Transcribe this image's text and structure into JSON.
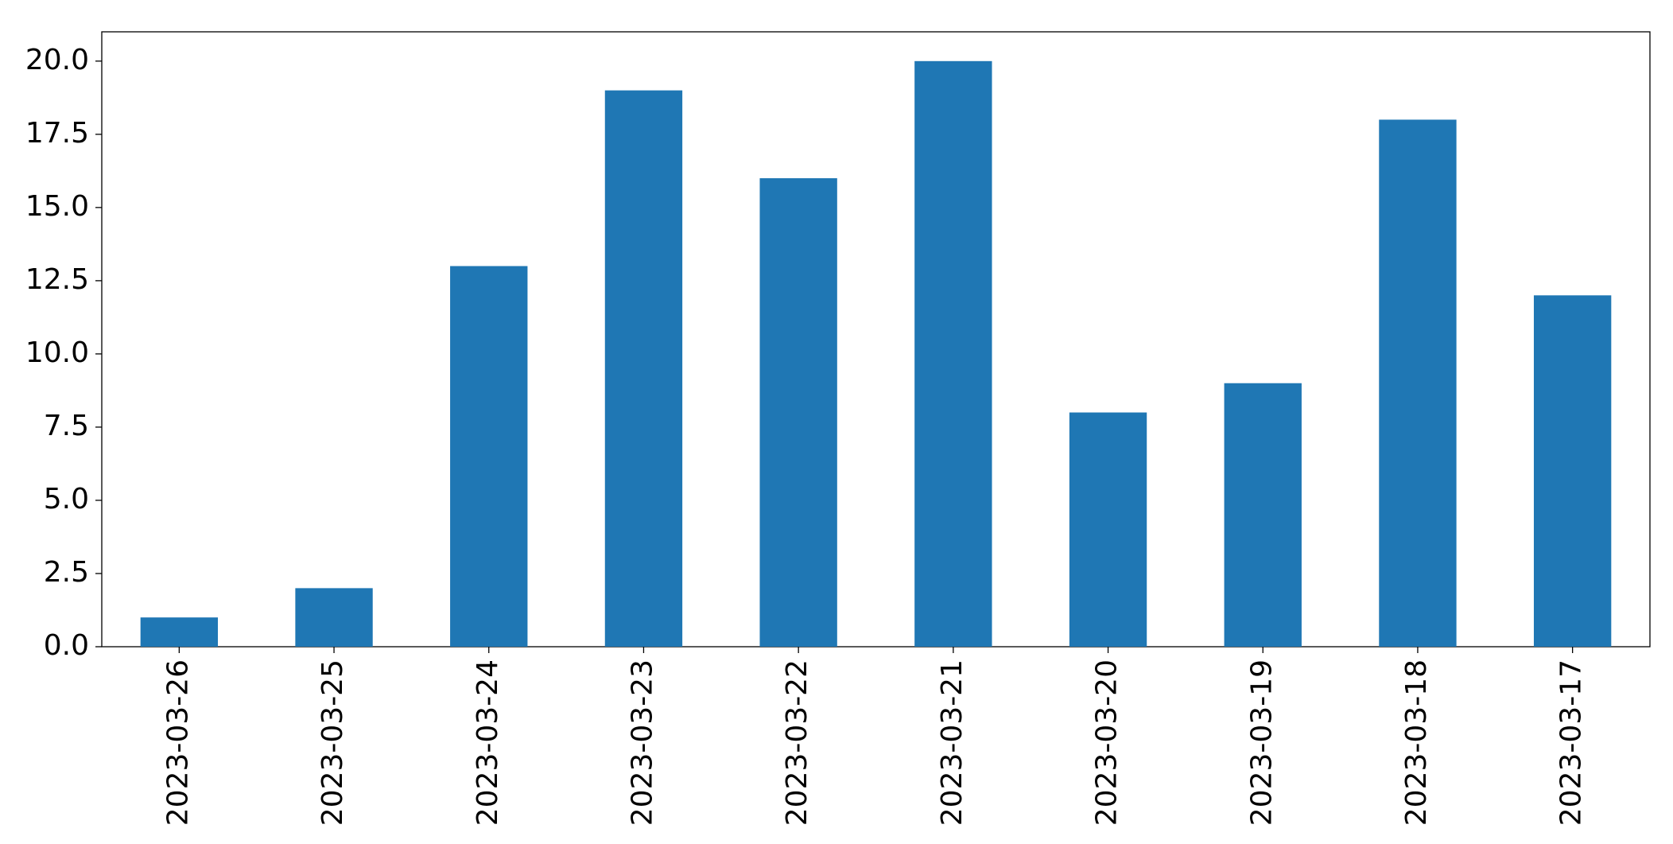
{
  "chart_data": {
    "type": "bar",
    "categories": [
      "2023-03-26",
      "2023-03-25",
      "2023-03-24",
      "2023-03-23",
      "2023-03-22",
      "2023-03-21",
      "2023-03-20",
      "2023-03-19",
      "2023-03-18",
      "2023-03-17"
    ],
    "values": [
      1,
      2,
      13,
      19,
      16,
      20,
      8,
      9,
      18,
      12
    ],
    "color": "#1f77b4",
    "ylim": [
      0,
      21
    ],
    "yticks": [
      {
        "value": 0,
        "label": "0.0"
      },
      2.5,
      {
        "value": 5,
        "label": "5.0"
      },
      7.5,
      {
        "value": 10,
        "label": "10.0"
      },
      12.5,
      {
        "value": 15,
        "label": "15.0"
      },
      17.5,
      {
        "value": 20,
        "label": "20.0"
      }
    ],
    "grid": false
  }
}
